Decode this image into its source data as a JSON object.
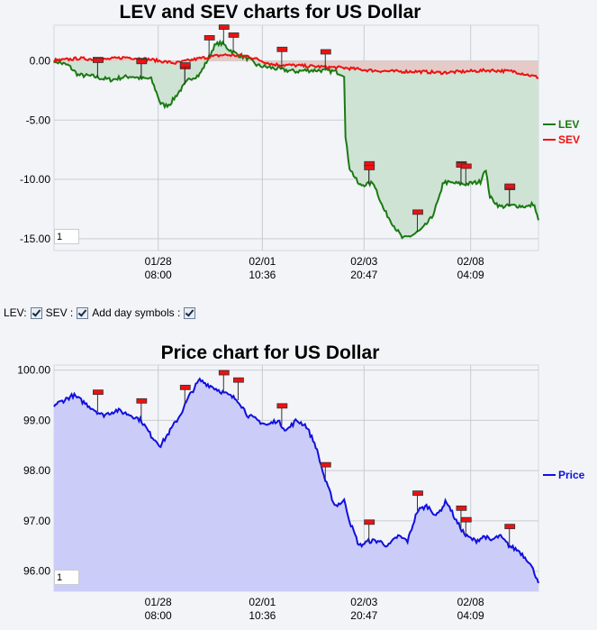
{
  "charts": [
    {
      "id": "lev-sev",
      "title": "LEV and SEV charts for US Dollar",
      "ylim": [
        -16,
        3
      ],
      "yticks": [
        "0.00",
        "-5.00",
        "-10.00",
        "-15.00"
      ],
      "ytick_values": [
        0,
        -5,
        -10,
        -15
      ],
      "xticks": [
        {
          "date": "01/28",
          "time": "08:00"
        },
        {
          "date": "02/01",
          "time": "10:36"
        },
        {
          "date": "02/03",
          "time": "20:47"
        },
        {
          "date": "02/08",
          "time": "04:09"
        }
      ],
      "legend": [
        "LEV",
        "SEV"
      ],
      "zoom_value": "1"
    },
    {
      "id": "price",
      "title": "Price chart for US Dollar",
      "ylim": [
        95.6,
        100.1
      ],
      "yticks": [
        "100.00",
        "99.00",
        "98.00",
        "97.00",
        "96.00"
      ],
      "ytick_values": [
        100,
        99,
        98,
        97,
        96
      ],
      "xticks": [
        {
          "date": "01/28",
          "time": "08:00"
        },
        {
          "date": "02/01",
          "time": "10:36"
        },
        {
          "date": "02/03",
          "time": "20:47"
        },
        {
          "date": "02/08",
          "time": "04:09"
        }
      ],
      "legend": [
        "Price"
      ],
      "zoom_value": "1"
    }
  ],
  "controls": {
    "lev_label": "LEV:",
    "sev_label": "SEV :",
    "day_symbols_label": "Add day symbols :",
    "lev_checked": true,
    "sev_checked": true,
    "day_symbols_checked": true
  },
  "colors": {
    "lev": "#1a7a12",
    "lev_fill": "#cfe3d5",
    "sev": "#ee1111",
    "sev_fill": "#e6c8c6",
    "price": "#1010dd",
    "price_fill": "#ccccf8",
    "grid": "#c8ccd2",
    "marker": "#ee1111"
  },
  "chart_data": [
    {
      "type": "area",
      "title": "LEV and SEV charts for US Dollar",
      "ylim": [
        -16,
        3
      ],
      "x_ticks": [
        "01/28 08:00",
        "02/01 10:36",
        "02/03 20:47",
        "02/08 04:09"
      ],
      "series": [
        {
          "name": "LEV",
          "x": [
            0,
            0.03,
            0.05,
            0.08,
            0.1,
            0.12,
            0.14,
            0.16,
            0.18,
            0.2,
            0.21,
            0.22,
            0.23,
            0.24,
            0.26,
            0.28,
            0.3,
            0.32,
            0.33,
            0.34,
            0.35,
            0.36,
            0.38,
            0.4,
            0.42,
            0.45,
            0.48,
            0.5,
            0.52,
            0.55,
            0.58,
            0.6,
            0.6,
            0.61,
            0.63,
            0.66,
            0.68,
            0.7,
            0.72,
            0.74,
            0.76,
            0.78,
            0.8,
            0.8,
            0.82,
            0.85,
            0.88,
            0.89,
            0.9,
            0.92,
            0.95,
            0.98,
            0.99,
            1.0
          ],
          "y": [
            0,
            -0.4,
            -1.2,
            -1.3,
            -1.5,
            -1.6,
            -1.4,
            -1.3,
            -1.5,
            -1.5,
            -2.5,
            -3.6,
            -3.8,
            -3.6,
            -2.5,
            -1.5,
            -1.2,
            0.3,
            1.2,
            1.5,
            1.4,
            1.0,
            0.5,
            0.2,
            -0.4,
            -0.6,
            -0.8,
            -0.9,
            -0.8,
            -0.8,
            -0.9,
            -1.2,
            -6.0,
            -9.0,
            -10.5,
            -10.3,
            -12.5,
            -13.8,
            -15.0,
            -14.7,
            -14.2,
            -13.2,
            -11.0,
            -10.2,
            -10.3,
            -10.4,
            -10.2,
            -9.0,
            -11.5,
            -12.3,
            -12.2,
            -12.3,
            -12.0,
            -13.5
          ]
        },
        {
          "name": "SEV",
          "x": [
            0,
            0.05,
            0.1,
            0.15,
            0.2,
            0.25,
            0.3,
            0.35,
            0.4,
            0.45,
            0.5,
            0.55,
            0.6,
            0.65,
            0.7,
            0.75,
            0.8,
            0.85,
            0.9,
            0.95,
            1.0
          ],
          "y": [
            0,
            0.2,
            0.1,
            0.3,
            0.1,
            -0.2,
            0.2,
            0.5,
            0.4,
            -0.3,
            -0.4,
            -0.5,
            -0.6,
            -0.8,
            -0.9,
            -0.9,
            -1.0,
            -0.9,
            -0.8,
            -0.9,
            -1.4
          ]
        }
      ]
    },
    {
      "type": "area",
      "title": "Price chart for US Dollar",
      "ylim": [
        95.6,
        100.1
      ],
      "x_ticks": [
        "01/28 08:00",
        "02/01 10:36",
        "02/03 20:47",
        "02/08 04:09"
      ],
      "series": [
        {
          "name": "Price",
          "x": [
            0,
            0.04,
            0.07,
            0.1,
            0.13,
            0.16,
            0.18,
            0.2,
            0.22,
            0.24,
            0.26,
            0.28,
            0.3,
            0.32,
            0.34,
            0.36,
            0.38,
            0.4,
            0.42,
            0.44,
            0.46,
            0.48,
            0.5,
            0.52,
            0.54,
            0.56,
            0.58,
            0.6,
            0.61,
            0.63,
            0.65,
            0.67,
            0.69,
            0.71,
            0.73,
            0.75,
            0.77,
            0.79,
            0.81,
            0.83,
            0.85,
            0.87,
            0.89,
            0.9,
            0.92,
            0.94,
            0.96,
            0.98,
            1.0
          ],
          "y": [
            99.3,
            99.5,
            99.3,
            99.1,
            99.2,
            99.1,
            99.0,
            98.7,
            98.5,
            98.8,
            99.1,
            99.5,
            99.8,
            99.7,
            99.6,
            99.5,
            99.4,
            99.1,
            99.0,
            98.9,
            99.0,
            98.8,
            99.0,
            98.9,
            98.5,
            97.8,
            97.3,
            97.4,
            97.0,
            96.5,
            96.6,
            96.6,
            96.5,
            96.7,
            96.6,
            97.2,
            97.3,
            97.1,
            97.4,
            97.0,
            96.7,
            96.6,
            96.7,
            96.6,
            96.7,
            96.5,
            96.4,
            96.2,
            95.8
          ]
        }
      ]
    }
  ]
}
